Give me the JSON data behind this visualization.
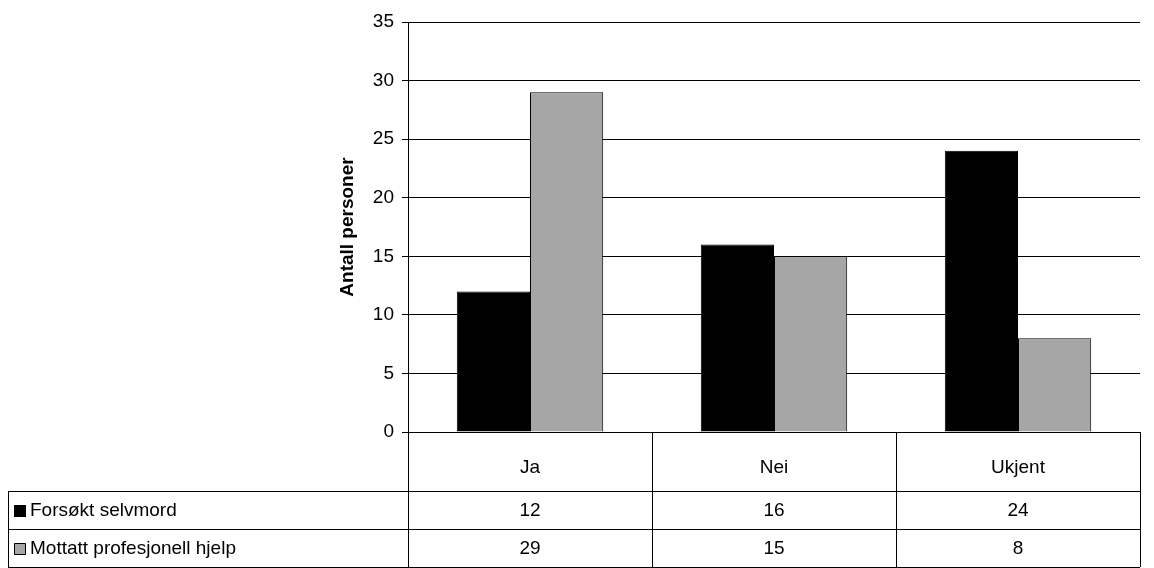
{
  "chart_data": {
    "type": "bar",
    "ylabel": "Antall personer",
    "categories": [
      "Ja",
      "Nei",
      "Ukjent"
    ],
    "series": [
      {
        "name": "Forsøkt selvmord",
        "color": "#000000",
        "values": [
          12,
          16,
          24
        ]
      },
      {
        "name": "Mottatt profesjonell hjelp",
        "color": "#a6a6a6",
        "values": [
          29,
          15,
          8
        ]
      }
    ],
    "ylim": [
      0,
      35
    ],
    "yticks": [
      0,
      5,
      10,
      15,
      20,
      25,
      30,
      35
    ],
    "grid": "y",
    "legend": "bottom",
    "data_labels": true
  }
}
